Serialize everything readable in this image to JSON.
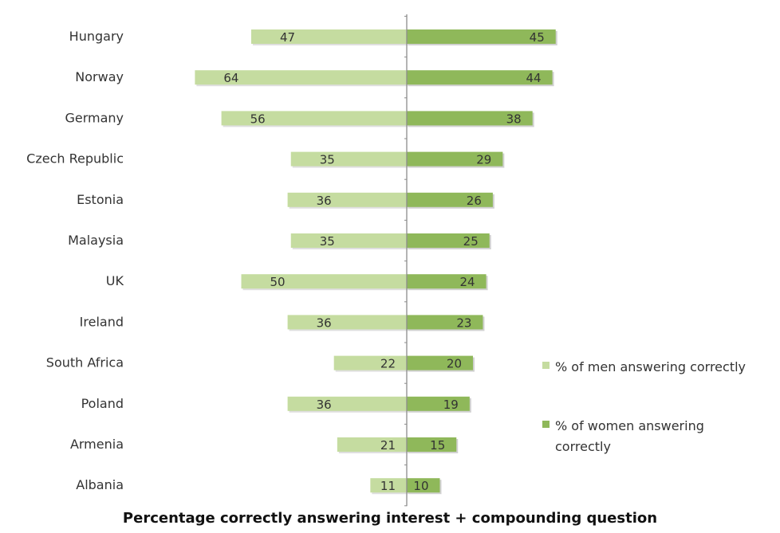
{
  "chart_data": {
    "type": "bar",
    "orientation": "horizontal-diverging",
    "categories": [
      "Hungary",
      "Norway",
      "Germany",
      "Czech Republic",
      "Estonia",
      "Malaysia",
      "UK",
      "Ireland",
      "South Africa",
      "Poland",
      "Armenia",
      "Albania"
    ],
    "series": [
      {
        "name": "% of men answering correctly",
        "values": [
          47,
          64,
          56,
          35,
          36,
          35,
          50,
          36,
          22,
          36,
          21,
          11
        ],
        "color": "#c5dca0",
        "direction": "left"
      },
      {
        "name": "% of women answering correctly",
        "values": [
          45,
          44,
          38,
          29,
          26,
          25,
          24,
          23,
          20,
          19,
          15,
          10
        ],
        "color": "#8fb85a",
        "direction": "right"
      }
    ],
    "legend_lines": [
      [
        "% of men answering correctly"
      ],
      [
        "% of women answering",
        "correctly"
      ]
    ],
    "xlabel": "Percentage correctly answering interest + compounding question",
    "ylabel": "",
    "legend_position": "right",
    "grid": false
  }
}
